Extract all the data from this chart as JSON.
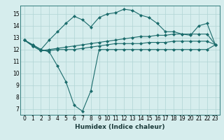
{
  "xlabel": "Humidex (Indice chaleur)",
  "background_color": "#d6eded",
  "line_color": "#1a6b6b",
  "grid_color": "#b0d4d4",
  "xlim": [
    -0.5,
    23.5
  ],
  "ylim": [
    6.5,
    15.7
  ],
  "yticks": [
    7,
    8,
    9,
    10,
    11,
    12,
    13,
    14,
    15
  ],
  "xticks": [
    0,
    1,
    2,
    3,
    4,
    5,
    6,
    7,
    8,
    9,
    10,
    11,
    12,
    13,
    14,
    15,
    16,
    17,
    18,
    19,
    20,
    21,
    22,
    23
  ],
  "line1_x": [
    0,
    1,
    2,
    3,
    4,
    5,
    6,
    7,
    8,
    9,
    10,
    11,
    12,
    13,
    14,
    15,
    16,
    17,
    18,
    19,
    20,
    21,
    22,
    23
  ],
  "line1_y": [
    12.8,
    12.4,
    12.0,
    11.8,
    10.6,
    9.3,
    7.3,
    6.8,
    8.5,
    12.0,
    12.0,
    12.0,
    12.0,
    12.0,
    12.0,
    12.0,
    12.0,
    12.0,
    12.0,
    12.0,
    12.0,
    12.0,
    12.0,
    12.4
  ],
  "line2_x": [
    0,
    1,
    2,
    3,
    4,
    5,
    6,
    7,
    8,
    9,
    10,
    11,
    12,
    13,
    14,
    15,
    16,
    17,
    18,
    19,
    20,
    21,
    22,
    23
  ],
  "line2_y": [
    12.8,
    12.3,
    11.9,
    11.9,
    12.0,
    12.0,
    12.0,
    12.1,
    12.2,
    12.3,
    12.4,
    12.5,
    12.5,
    12.5,
    12.5,
    12.6,
    12.6,
    12.6,
    12.7,
    12.7,
    12.7,
    12.7,
    12.7,
    12.4
  ],
  "line3_x": [
    0,
    1,
    2,
    3,
    4,
    5,
    6,
    7,
    8,
    9,
    10,
    11,
    12,
    13,
    14,
    15,
    16,
    17,
    18,
    19,
    20,
    21,
    22,
    23
  ],
  "line3_y": [
    12.8,
    12.3,
    11.9,
    12.0,
    12.1,
    12.2,
    12.3,
    12.4,
    12.5,
    12.6,
    12.7,
    12.8,
    12.9,
    13.0,
    13.1,
    13.1,
    13.2,
    13.2,
    13.3,
    13.3,
    13.3,
    13.3,
    13.3,
    12.4
  ],
  "line4_x": [
    0,
    1,
    2,
    3,
    4,
    5,
    6,
    7,
    8,
    9,
    10,
    11,
    12,
    13,
    14,
    15,
    16,
    17,
    18,
    19,
    20,
    21,
    22,
    23
  ],
  "line4_y": [
    12.8,
    12.4,
    12.0,
    12.8,
    13.5,
    14.2,
    14.8,
    14.5,
    13.9,
    14.7,
    15.0,
    15.1,
    15.4,
    15.3,
    14.9,
    14.7,
    14.2,
    13.5,
    13.5,
    13.3,
    13.2,
    14.0,
    14.2,
    12.4
  ],
  "marker_size": 2.5,
  "line_width": 0.8,
  "tick_fontsize": 5.5,
  "xlabel_fontsize": 6.5
}
